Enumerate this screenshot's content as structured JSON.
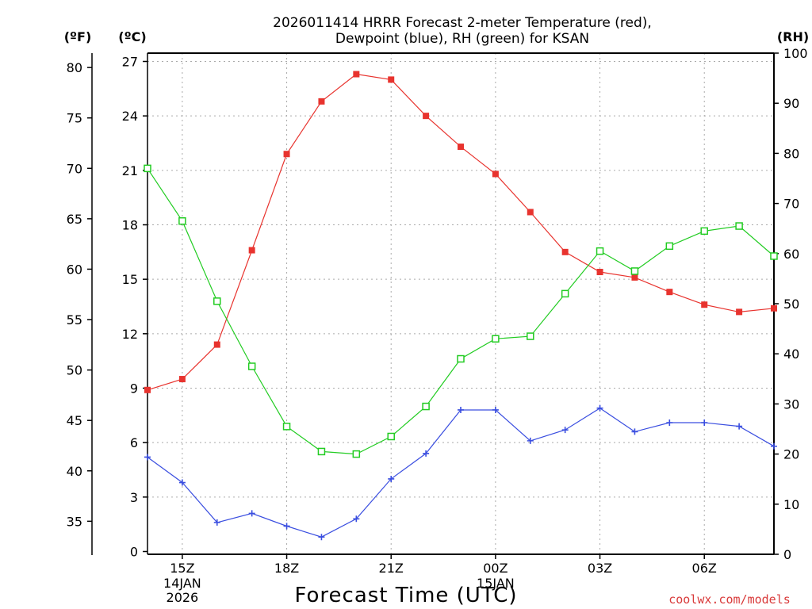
{
  "chart_data": {
    "type": "line",
    "title": [
      "2026011414 HRRR Forecast 2-meter Temperature (red),",
      "Dewpoint (blue), RH (green) for KSAN"
    ],
    "xlabel": "Forecast Time (UTC)",
    "credit": "coolwx.com/models",
    "units": {
      "fahrenheit": "(ºF)",
      "celsius": "(ºC)",
      "rh": "(RH)"
    },
    "x_hours": [
      14,
      15,
      16,
      17,
      18,
      19,
      20,
      21,
      22,
      23,
      24,
      25,
      26,
      27,
      28,
      29,
      30,
      31,
      32
    ],
    "x_ticks": [
      {
        "hour": 15,
        "label": "15Z",
        "sub": [
          "14JAN",
          "2026"
        ]
      },
      {
        "hour": 18,
        "label": "18Z",
        "sub": []
      },
      {
        "hour": 21,
        "label": "21Z",
        "sub": []
      },
      {
        "hour": 24,
        "label": "00Z",
        "sub": [
          "15JAN"
        ]
      },
      {
        "hour": 27,
        "label": "03Z",
        "sub": []
      },
      {
        "hour": 30,
        "label": "06Z",
        "sub": []
      }
    ],
    "xlim": [
      14,
      32
    ],
    "y_celsius": {
      "ylim": [
        0,
        27
      ],
      "ticks": [
        0,
        3,
        6,
        9,
        12,
        15,
        18,
        21,
        24,
        27
      ]
    },
    "y_fahrenheit": {
      "ticks": [
        35,
        40,
        45,
        50,
        55,
        60,
        65,
        70,
        75,
        80
      ]
    },
    "y_rh": {
      "ylim": [
        0,
        100
      ],
      "ticks": [
        0,
        10,
        20,
        30,
        40,
        50,
        60,
        70,
        80,
        90,
        100
      ]
    },
    "grid": true,
    "series": [
      {
        "name": "Temperature",
        "axis": "celsius",
        "color": "#e8332e",
        "marker": "filled-square",
        "values": [
          8.9,
          9.5,
          11.4,
          16.6,
          21.9,
          24.8,
          26.3,
          26.0,
          24.0,
          22.3,
          20.8,
          18.7,
          16.5,
          15.4,
          15.1,
          14.3,
          13.6,
          13.2,
          13.4
        ]
      },
      {
        "name": "Dewpoint",
        "axis": "celsius",
        "color": "#3a4ee0",
        "marker": "plus",
        "values": [
          5.2,
          3.8,
          1.6,
          2.1,
          1.4,
          0.8,
          1.8,
          4.0,
          5.4,
          7.8,
          7.8,
          6.1,
          6.7,
          7.9,
          6.6,
          7.1,
          7.1,
          6.9,
          5.8
        ]
      },
      {
        "name": "RH",
        "axis": "rh",
        "color": "#22cc22",
        "marker": "open-square",
        "values": [
          77,
          66.5,
          50.5,
          37.5,
          25.5,
          20.5,
          20,
          23.5,
          29.5,
          39,
          43,
          43.5,
          52,
          60.5,
          56.5,
          61.5,
          64.5,
          65.5,
          59.5
        ]
      }
    ]
  }
}
